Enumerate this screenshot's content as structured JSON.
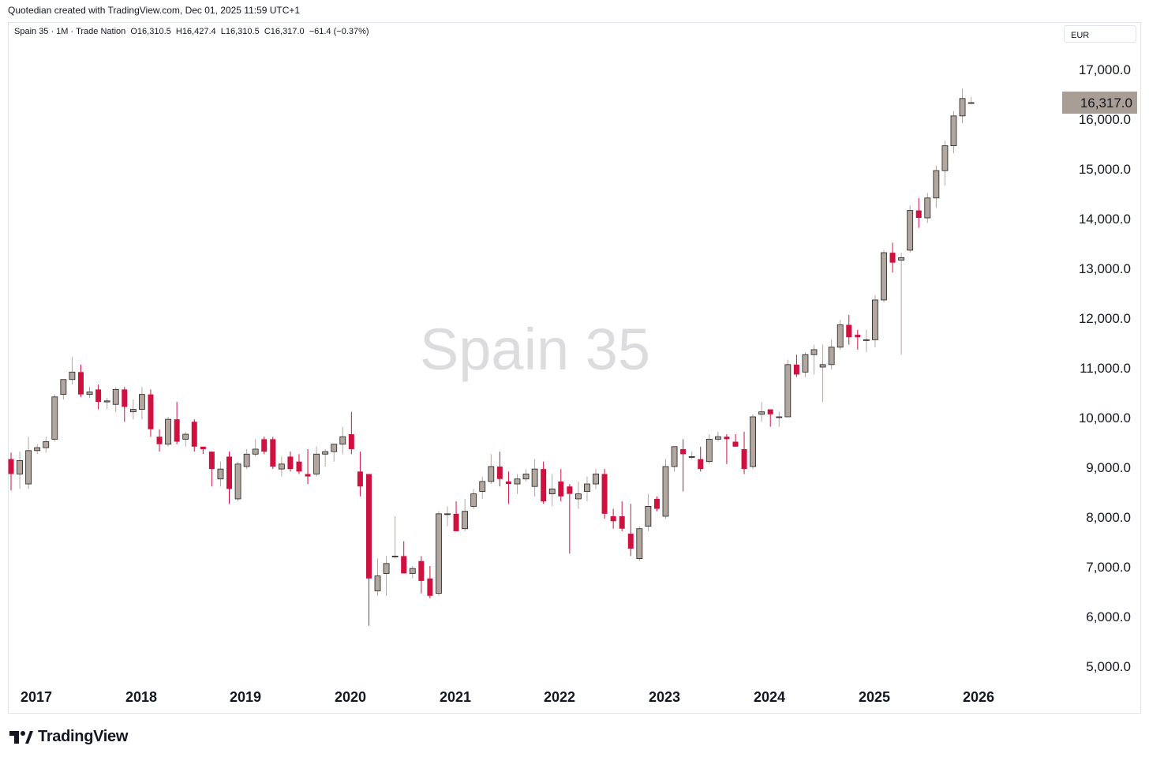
{
  "credit": "Quotedian created with TradingView.com, Dec 01, 2025 11:59 UTC+1",
  "legend": {
    "symbol": "Spain 35",
    "interval": "1M",
    "source": "Trade Nation",
    "open": "O16,310.5",
    "high": "H16,427.4",
    "low": "L16,310.5",
    "close": "C16,317.0",
    "change": "−61.4 (−0.37%)"
  },
  "currency": "EUR",
  "watermark": "Spain 35",
  "brand": "TradingView",
  "colors": {
    "up": "#b2a79e",
    "down": "#d01140",
    "last_price_bg": "#a89e96",
    "watermark": "#dcdcdf"
  },
  "chart_data": {
    "type": "candlestick",
    "ylim": [
      4600,
      17400
    ],
    "y_ticks": [
      "17,000.0",
      "16,000.0",
      "15,000.0",
      "14,000.0",
      "13,000.0",
      "12,000.0",
      "11,000.0",
      "10,000.0",
      "9,000.0",
      "8,000.0",
      "7,000.0",
      "6,000.0",
      "5,000.0"
    ],
    "y_tick_values": [
      17000,
      16000,
      15000,
      14000,
      13000,
      12000,
      11000,
      10000,
      9000,
      8000,
      7000,
      6000,
      5000
    ],
    "x_ticks": [
      "2017",
      "2018",
      "2019",
      "2020",
      "2021",
      "2022",
      "2023",
      "2024",
      "2025",
      "2026"
    ],
    "last_price": "16,317.0",
    "last_price_value": 16317,
    "ohlc": [
      [
        9150,
        9280,
        8520,
        8850
      ],
      [
        8850,
        9300,
        8550,
        9120
      ],
      [
        8650,
        9600,
        8550,
        9320
      ],
      [
        9320,
        9450,
        9250,
        9380
      ],
      [
        9380,
        9600,
        9280,
        9500
      ],
      [
        9550,
        10450,
        9500,
        10400
      ],
      [
        10450,
        10750,
        10350,
        10750
      ],
      [
        10750,
        11200,
        10650,
        10900
      ],
      [
        10900,
        11050,
        10400,
        10450
      ],
      [
        10450,
        10600,
        10380,
        10500
      ],
      [
        10550,
        10650,
        10150,
        10300
      ],
      [
        10300,
        10380,
        10150,
        10320
      ],
      [
        10250,
        10600,
        10100,
        10550
      ],
      [
        10550,
        10600,
        9900,
        10200
      ],
      [
        10100,
        10350,
        9950,
        10150
      ],
      [
        10150,
        10600,
        9950,
        10450
      ],
      [
        10450,
        10550,
        9600,
        9750
      ],
      [
        9600,
        9750,
        9300,
        9450
      ],
      [
        9450,
        10000,
        9400,
        9950
      ],
      [
        9950,
        10300,
        9450,
        9500
      ],
      [
        9550,
        9700,
        9400,
        9650
      ],
      [
        9900,
        9950,
        9300,
        9400
      ],
      [
        9400,
        9400,
        9250,
        9350
      ],
      [
        9300,
        9300,
        8600,
        8950
      ],
      [
        8750,
        9100,
        8600,
        8950
      ],
      [
        9200,
        9300,
        8250,
        8550
      ],
      [
        8350,
        9100,
        8300,
        9050
      ],
      [
        9000,
        9350,
        8950,
        9250
      ],
      [
        9250,
        9550,
        9200,
        9350
      ],
      [
        9550,
        9600,
        9250,
        9300
      ],
      [
        9550,
        9600,
        8950,
        9000
      ],
      [
        8950,
        9200,
        8800,
        9050
      ],
      [
        9200,
        9300,
        8900,
        8950
      ],
      [
        9100,
        9250,
        8850,
        8900
      ],
      [
        8850,
        9350,
        8650,
        8800
      ],
      [
        8850,
        9400,
        8800,
        9250
      ]
    ],
    "ohlc_2020_onward": [
      [
        9250,
        9350,
        9000,
        9300
      ],
      [
        9300,
        9450,
        9100,
        9450
      ],
      [
        9450,
        9800,
        9250,
        9600
      ],
      [
        9650,
        10100,
        9250,
        9350
      ],
      [
        8900,
        9300,
        8400,
        8600
      ],
      [
        8850,
        8850,
        5800,
        6750
      ],
      [
        6500,
        7150,
        6400,
        6800
      ],
      [
        6850,
        7200,
        6400,
        7050
      ],
      [
        7200,
        8000,
        7150,
        7200
      ],
      [
        7200,
        7500,
        6850,
        6850
      ],
      [
        6850,
        7000,
        6750,
        6950
      ],
      [
        7100,
        7200,
        6450,
        6700
      ],
      [
        6750,
        7000,
        6350,
        6400
      ],
      [
        6450,
        8100,
        6400,
        8050
      ],
      [
        8050,
        8200,
        7800,
        8050
      ],
      [
        8050,
        8300,
        7700,
        7700
      ],
      [
        7750,
        8350,
        7700,
        8100
      ],
      [
        8200,
        8550,
        8150,
        8450
      ],
      [
        8500,
        8800,
        8350,
        8700
      ],
      [
        8700,
        9250,
        8650,
        9000
      ],
      [
        9000,
        9300,
        8600,
        8750
      ],
      [
        8700,
        8900,
        8250,
        8650
      ],
      [
        8650,
        8850,
        8450,
        8750
      ],
      [
        8750,
        8950,
        8700,
        8850
      ],
      [
        8600,
        9150,
        8400,
        8950
      ],
      [
        8950,
        9100,
        8250,
        8300
      ],
      [
        8450,
        8850,
        8200,
        8550
      ],
      [
        8700,
        8950,
        8300,
        8400
      ],
      [
        8600,
        8650,
        7250,
        8450
      ],
      [
        8350,
        8700,
        8150,
        8450
      ],
      [
        8500,
        8800,
        8300,
        8650
      ],
      [
        8650,
        8950,
        8550,
        8850
      ],
      [
        8850,
        8950,
        7950,
        8050
      ],
      [
        8000,
        8150,
        7750,
        7900
      ],
      [
        8000,
        8300,
        7700,
        7750
      ],
      [
        7650,
        8250,
        7200,
        7350
      ],
      [
        7150,
        7800,
        7100,
        7750
      ],
      [
        7800,
        8450,
        7700,
        8200
      ],
      [
        8350,
        8400,
        8100,
        8150
      ],
      [
        8000,
        9150,
        7950,
        9000
      ],
      [
        9000,
        9400,
        8900,
        9400
      ],
      [
        9350,
        9550,
        8500,
        9250
      ],
      [
        9200,
        9300,
        9150,
        9200
      ],
      [
        9150,
        9400,
        8900,
        8950
      ],
      [
        9100,
        9650,
        9050,
        9550
      ],
      [
        9550,
        9700,
        9500,
        9600
      ],
      [
        9600,
        9650,
        9050,
        9550
      ],
      [
        9500,
        9650,
        9400,
        9400
      ],
      [
        9350,
        9700,
        8850,
        8950
      ],
      [
        9000,
        10050,
        8950,
        10000
      ],
      [
        10050,
        10300,
        9900,
        10100
      ],
      [
        10150,
        10150,
        9800,
        10050
      ],
      [
        10000,
        10100,
        9800,
        10000
      ],
      [
        10000,
        11150,
        10000,
        11050
      ],
      [
        11050,
        11250,
        10800,
        10850
      ],
      [
        10900,
        11300,
        10800,
        11250
      ],
      [
        11250,
        11450,
        10850,
        11350
      ],
      [
        11000,
        11450,
        10300,
        11050
      ],
      [
        11050,
        11550,
        10950,
        11400
      ],
      [
        11400,
        11950,
        11350,
        11850
      ],
      [
        11850,
        12050,
        11450,
        11600
      ],
      [
        11650,
        11750,
        11350,
        11600
      ],
      [
        11550,
        11750,
        11300,
        11550
      ],
      [
        11550,
        12450,
        11400,
        12350
      ],
      [
        12350,
        13350,
        12300,
        13300
      ],
      [
        13300,
        13500,
        12900,
        13100
      ],
      [
        13150,
        13300,
        11250,
        13200
      ],
      [
        13350,
        14250,
        13300,
        14150
      ],
      [
        14150,
        14400,
        13800,
        14000
      ],
      [
        14000,
        14500,
        13900,
        14400
      ],
      [
        14400,
        15050,
        14200,
        14950
      ],
      [
        14950,
        15550,
        14650,
        15450
      ],
      [
        15450,
        16150,
        15300,
        16050
      ],
      [
        16050,
        16600,
        15900,
        16400
      ],
      [
        16310.5,
        16427.4,
        16310.5,
        16317
      ]
    ]
  }
}
